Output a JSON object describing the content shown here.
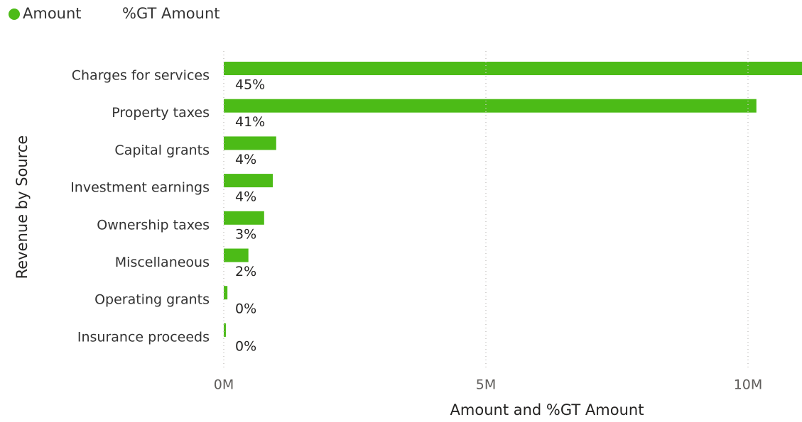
{
  "chart_data": {
    "type": "hbar",
    "y_label": "Revenue by Source",
    "x_label": "Amount and %GT Amount",
    "categories": [
      "Charges for services",
      "Property taxes",
      "Capital grants",
      "Investment earnings",
      "Ownership taxes",
      "Miscellaneous",
      "Operating grants",
      "Insurance proceeds"
    ],
    "series": [
      {
        "name": "Amount",
        "color": "#4cbb17",
        "values": [
          11150000,
          10160000,
          1000000,
          935000,
          770000,
          470000,
          70000,
          40000
        ]
      },
      {
        "name": "%GT Amount",
        "values": [
          45,
          41,
          4,
          4,
          3,
          2,
          0,
          0
        ],
        "value_labels": [
          "45%",
          "41%",
          "4%",
          "4%",
          "3%",
          "2%",
          "0%",
          "0%"
        ]
      }
    ],
    "xlim": [
      0,
      11030000
    ],
    "xticks": [
      {
        "value": 0,
        "label": "0M"
      },
      {
        "value": 5000000,
        "label": "5M"
      },
      {
        "value": 10000000,
        "label": "10M"
      }
    ],
    "grid": true,
    "legend": "top-left"
  }
}
